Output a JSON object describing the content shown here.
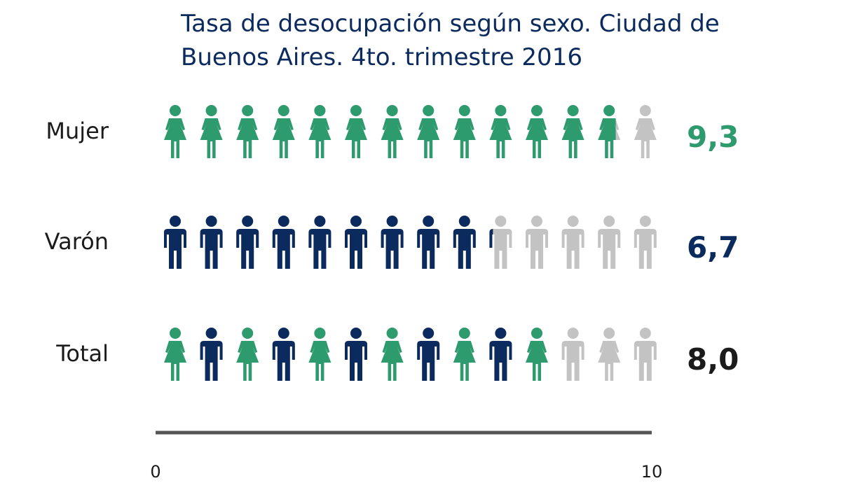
{
  "title": {
    "line1": "Tasa de desocupación según sexo. Ciudad de",
    "line2": "Buenos Aires. 4to. trimestre 2016"
  },
  "colors": {
    "female": "#2e9b6f",
    "male": "#0b2a5e",
    "inactive": "#c3c3c3",
    "axis": "#555555",
    "total_value": "#1b1b1b"
  },
  "chart_data": {
    "type": "pictogram",
    "unit_icons_per_row": 14,
    "xlim": [
      0,
      10
    ],
    "x_ticks": [
      "0",
      "10"
    ],
    "rows": [
      {
        "category": "Mujer",
        "value": 9.3,
        "value_label": "9,3",
        "icon": "female",
        "color_key": "female"
      },
      {
        "category": "Varón",
        "value": 6.7,
        "value_label": "6,7",
        "icon": "male",
        "color_key": "male"
      },
      {
        "category": "Total",
        "value": 8.0,
        "value_label": "8,0",
        "icon": "alternating",
        "color_key": "total_value"
      }
    ]
  }
}
